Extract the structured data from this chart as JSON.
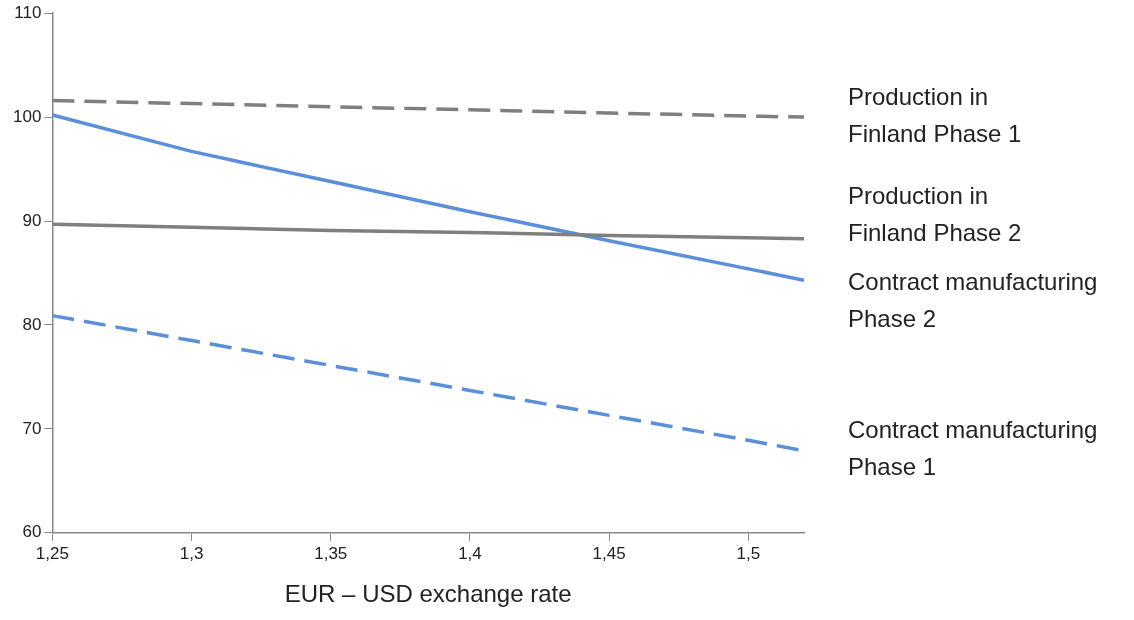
{
  "chart_data": {
    "type": "line",
    "xlabel": "EUR – USD exchange rate",
    "x": [
      1.25,
      1.3,
      1.35,
      1.4,
      1.45,
      1.5,
      1.52
    ],
    "series": [
      {
        "name": "Production in\nFinland Phase 1",
        "color": "#7f7f7f",
        "line_style": "dashed",
        "values": [
          101.6,
          101.3,
          101.0,
          100.7,
          100.4,
          100.1,
          100.0
        ]
      },
      {
        "name": "Production in\nFinland Phase 2",
        "color": "#7f7f7f",
        "line_style": "solid",
        "values": [
          89.7,
          89.4,
          89.1,
          88.9,
          88.6,
          88.4,
          88.3
        ]
      },
      {
        "name": "Contract manufacturing\nPhase 2",
        "color": "#5b8fd9",
        "line_style": "solid",
        "values": [
          100.2,
          96.7,
          93.8,
          90.9,
          88.1,
          85.4,
          84.3
        ]
      },
      {
        "name": "Contract manufacturing\nPhase 1",
        "color": "#5b8fd9",
        "line_style": "dashed",
        "values": [
          80.9,
          78.5,
          76.1,
          73.7,
          71.3,
          68.9,
          67.9
        ]
      }
    ],
    "xlim": [
      1.25,
      1.52
    ],
    "xticks": [
      {
        "value": 1.25,
        "label": "1,25"
      },
      {
        "value": 1.3,
        "label": "1,3"
      },
      {
        "value": 1.35,
        "label": "1,35"
      },
      {
        "value": 1.4,
        "label": "1,4"
      },
      {
        "value": 1.45,
        "label": "1,45"
      },
      {
        "value": 1.5,
        "label": "1,5"
      }
    ],
    "ylim": [
      60,
      110
    ],
    "yticks": [
      60,
      70,
      80,
      90,
      100,
      110
    ],
    "grid": false,
    "legend": false,
    "marker": "none"
  }
}
